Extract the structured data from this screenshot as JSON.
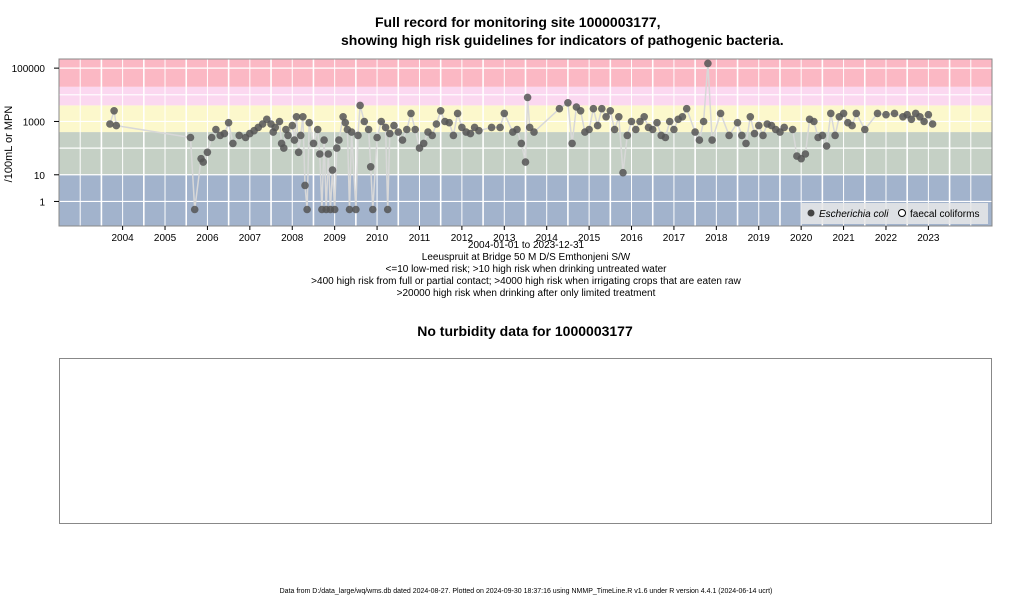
{
  "titles": {
    "line1": "Full record for monitoring site 1000003177,",
    "line2": "showing high risk guidelines for indicators of pathogenic bacteria."
  },
  "subtitles": {
    "date_range": "2004-01-01 to 2023-12-31",
    "site": "Leeuspruit at Bridge 50 M D/S Emthonjeni S/W",
    "guide1": "<=10 low-med risk; >10 high risk when drinking untreated water",
    "guide2": ">400 high risk from full or partial contact; >4000 high risk when irrigating crops that are eaten raw",
    "guide3": ">20000 high risk when drinking after only limited treatment"
  },
  "turbidity": {
    "title": "No turbidity data for 1000003177"
  },
  "footer": "Data from D:/data_large/wq/wms.db dated 2024-08-27. Plotted on 2024-09-30 18:37:16 using NMMP_TimeLine.R v1.6 under R version 4.4.1 (2024-06-14 ucrt)",
  "colors": {
    "band_low": "#a2b3cc",
    "band_contact": "#c5d0c5",
    "band_irrigation": "#fcf8cc",
    "band_limited": "#fbd8f0",
    "band_high": "#fbb8c4",
    "points": "#555555",
    "line": "#d8d8d8",
    "grid": "#ffffff"
  },
  "chart_data": {
    "type": "scatter",
    "scale": "log10",
    "xlim": [
      "2003-01-01",
      "2024-12-31"
    ],
    "ylim": [
      0.12,
      220000
    ],
    "ylabel": "/100mL or MPN",
    "y_ticks": [
      1,
      10,
      1000,
      100000
    ],
    "y_tick_labels": [
      "1",
      "10",
      "1000",
      "100000"
    ],
    "x_tick_labels": [
      "2004",
      "2005",
      "2006",
      "2007",
      "2008",
      "2009",
      "2010",
      "2011",
      "2012",
      "2013",
      "2014",
      "2015",
      "2016",
      "2017",
      "2018",
      "2019",
      "2020",
      "2021",
      "2022",
      "2023"
    ],
    "risk_bands": [
      {
        "from": 0.12,
        "to": 10,
        "color_key": "band_low"
      },
      {
        "from": 10,
        "to": 400,
        "color_key": "band_contact"
      },
      {
        "from": 400,
        "to": 4000,
        "color_key": "band_irrigation"
      },
      {
        "from": 4000,
        "to": 20000,
        "color_key": "band_limited"
      },
      {
        "from": 20000,
        "to": 220000,
        "color_key": "band_high"
      }
    ],
    "grid": true,
    "legend_position": "bottom-right",
    "series": [
      {
        "name": "Escherichia coli",
        "marker": "filled",
        "points": [
          [
            "2004.20",
            800
          ],
          [
            "2004.30",
            2500
          ],
          [
            "2004.35",
            700
          ],
          [
            "2006.10",
            250
          ],
          [
            "2006.20",
            0.5
          ],
          [
            "2006.35",
            40
          ],
          [
            "2006.40",
            30
          ],
          [
            "2006.50",
            70
          ],
          [
            "2006.60",
            250
          ],
          [
            "2006.70",
            500
          ],
          [
            "2006.80",
            300
          ],
          [
            "2006.90",
            350
          ],
          [
            "2007.00",
            900
          ],
          [
            "2007.10",
            150
          ],
          [
            "2007.25",
            300
          ],
          [
            "2007.40",
            250
          ],
          [
            "2007.50",
            350
          ],
          [
            "2007.60",
            450
          ],
          [
            "2007.70",
            600
          ],
          [
            "2007.80",
            800
          ],
          [
            "2007.90",
            1200
          ],
          [
            "2008.00",
            800
          ],
          [
            "2008.05",
            400
          ],
          [
            "2008.10",
            600
          ],
          [
            "2008.20",
            1000
          ],
          [
            "2008.25",
            150
          ],
          [
            "2008.30",
            100
          ],
          [
            "2008.35",
            500
          ],
          [
            "2008.40",
            300
          ],
          [
            "2008.50",
            700
          ],
          [
            "2008.55",
            200
          ],
          [
            "2008.60",
            1500
          ],
          [
            "2008.65",
            70
          ],
          [
            "2008.70",
            300
          ],
          [
            "2008.75",
            1500
          ],
          [
            "2008.80",
            4
          ],
          [
            "2008.85",
            0.5
          ],
          [
            "2008.90",
            900
          ],
          [
            "2009.00",
            150
          ],
          [
            "2009.10",
            500
          ],
          [
            "2009.15",
            60
          ],
          [
            "2009.20",
            0.5
          ],
          [
            "2009.25",
            200
          ],
          [
            "2009.30",
            0.5
          ],
          [
            "2009.35",
            60
          ],
          [
            "2009.40",
            0.5
          ],
          [
            "2009.45",
            15
          ],
          [
            "2009.50",
            0.5
          ],
          [
            "2009.55",
            100
          ],
          [
            "2009.60",
            200
          ],
          [
            "2009.70",
            1500
          ],
          [
            "2009.75",
            900
          ],
          [
            "2009.80",
            500
          ],
          [
            "2009.85",
            0.5
          ],
          [
            "2009.90",
            400
          ],
          [
            "2010.00",
            0.5
          ],
          [
            "2010.05",
            300
          ],
          [
            "2010.10",
            4000
          ],
          [
            "2010.20",
            1000
          ],
          [
            "2010.30",
            500
          ],
          [
            "2010.35",
            20
          ],
          [
            "2010.40",
            0.5
          ],
          [
            "2010.50",
            250
          ],
          [
            "2010.60",
            1000
          ],
          [
            "2010.70",
            600
          ],
          [
            "2010.75",
            0.5
          ],
          [
            "2010.80",
            350
          ],
          [
            "2010.90",
            700
          ],
          [
            "2011.00",
            400
          ],
          [
            "2011.10",
            200
          ],
          [
            "2011.20",
            500
          ],
          [
            "2011.30",
            2000
          ],
          [
            "2011.40",
            500
          ],
          [
            "2011.50",
            100
          ],
          [
            "2011.60",
            150
          ],
          [
            "2011.70",
            400
          ],
          [
            "2011.80",
            300
          ],
          [
            "2011.90",
            800
          ],
          [
            "2012.00",
            2500
          ],
          [
            "2012.10",
            1000
          ],
          [
            "2012.20",
            900
          ],
          [
            "2012.30",
            300
          ],
          [
            "2012.40",
            2000
          ],
          [
            "2012.50",
            600
          ],
          [
            "2012.60",
            400
          ],
          [
            "2012.70",
            350
          ],
          [
            "2012.80",
            600
          ],
          [
            "2012.90",
            450
          ],
          [
            "2013.20",
            600
          ],
          [
            "2013.40",
            600
          ],
          [
            "2013.50",
            2000
          ],
          [
            "2013.70",
            400
          ],
          [
            "2013.80",
            500
          ],
          [
            "2013.90",
            150
          ],
          [
            "2014.00",
            30
          ],
          [
            "2014.05",
            8000
          ],
          [
            "2014.10",
            600
          ],
          [
            "2014.20",
            400
          ],
          [
            "2014.80",
            3000
          ],
          [
            "2015.00",
            5000
          ],
          [
            "2015.10",
            150
          ],
          [
            "2015.20",
            3500
          ],
          [
            "2015.30",
            2500
          ],
          [
            "2015.40",
            400
          ],
          [
            "2015.50",
            500
          ],
          [
            "2015.60",
            3000
          ],
          [
            "2015.70",
            700
          ],
          [
            "2015.80",
            3000
          ],
          [
            "2015.90",
            1500
          ],
          [
            "2016.00",
            2500
          ],
          [
            "2016.10",
            500
          ],
          [
            "2016.20",
            1500
          ],
          [
            "2016.30",
            12
          ],
          [
            "2016.40",
            300
          ],
          [
            "2016.50",
            1000
          ],
          [
            "2016.60",
            500
          ],
          [
            "2016.70",
            1000
          ],
          [
            "2016.80",
            1500
          ],
          [
            "2016.90",
            600
          ],
          [
            "2017.00",
            500
          ],
          [
            "2017.10",
            900
          ],
          [
            "2017.20",
            300
          ],
          [
            "2017.30",
            250
          ],
          [
            "2017.40",
            1000
          ],
          [
            "2017.50",
            500
          ],
          [
            "2017.60",
            1200
          ],
          [
            "2017.70",
            1500
          ],
          [
            "2017.80",
            3000
          ],
          [
            "2018.00",
            400
          ],
          [
            "2018.10",
            200
          ],
          [
            "2018.20",
            1000
          ],
          [
            "2018.30",
            150000
          ],
          [
            "2018.40",
            200
          ],
          [
            "2018.60",
            2000
          ],
          [
            "2018.80",
            300
          ],
          [
            "2019.00",
            900
          ],
          [
            "2019.10",
            300
          ],
          [
            "2019.20",
            150
          ],
          [
            "2019.30",
            1500
          ],
          [
            "2019.40",
            350
          ],
          [
            "2019.50",
            700
          ],
          [
            "2019.60",
            300
          ],
          [
            "2019.70",
            800
          ],
          [
            "2019.80",
            700
          ],
          [
            "2019.90",
            500
          ],
          [
            "2020.00",
            400
          ],
          [
            "2020.10",
            600
          ],
          [
            "2020.30",
            500
          ],
          [
            "2020.40",
            50
          ],
          [
            "2020.50",
            40
          ],
          [
            "2020.60",
            60
          ],
          [
            "2020.70",
            1200
          ],
          [
            "2020.80",
            1000
          ],
          [
            "2020.90",
            250
          ],
          [
            "2021.00",
            300
          ],
          [
            "2021.10",
            120
          ],
          [
            "2021.20",
            2000
          ],
          [
            "2021.30",
            300
          ],
          [
            "2021.40",
            1500
          ],
          [
            "2021.50",
            2000
          ],
          [
            "2021.60",
            900
          ],
          [
            "2021.70",
            700
          ],
          [
            "2021.80",
            2000
          ],
          [
            "2022.00",
            500
          ],
          [
            "2022.30",
            2000
          ],
          [
            "2022.50",
            1800
          ],
          [
            "2022.70",
            2000
          ],
          [
            "2022.90",
            1500
          ],
          [
            "2023.00",
            1800
          ],
          [
            "2023.10",
            1200
          ],
          [
            "2023.20",
            2000
          ],
          [
            "2023.30",
            1500
          ],
          [
            "2023.40",
            1000
          ],
          [
            "2023.50",
            1800
          ],
          [
            "2023.60",
            800
          ]
        ]
      },
      {
        "name": "faecal coliforms",
        "marker": "open",
        "points": []
      }
    ]
  }
}
